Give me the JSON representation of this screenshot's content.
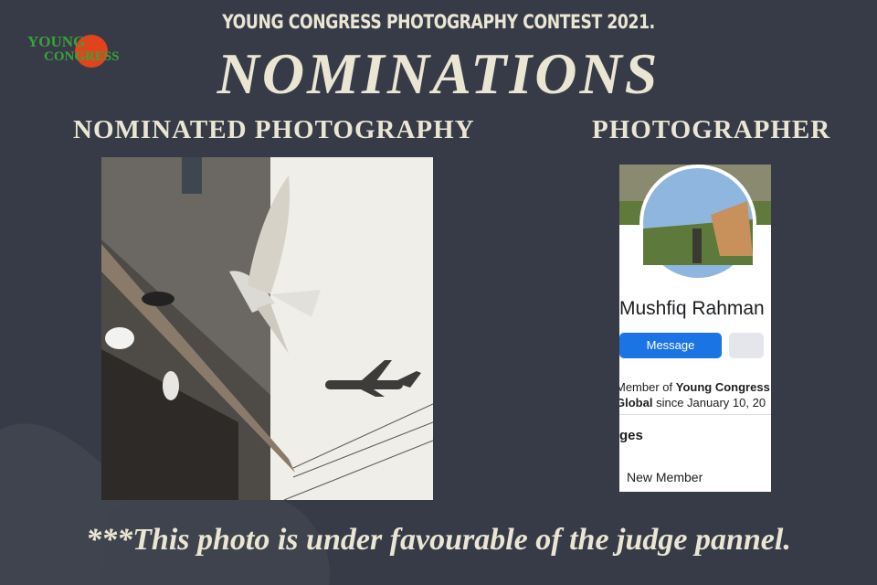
{
  "logo": {
    "line1": "YOUNG",
    "line2": "CONGRESS"
  },
  "header": {
    "subtitle": "YOUNG CONGRESS PHOTOGRAPHY CONTEST 2021.",
    "title": "NOMINATIONS"
  },
  "columns": {
    "left": "NOMINATED PHOTOGRAPHY",
    "right": "PHOTOGRAPHER"
  },
  "profile": {
    "name": "Mushfiq Rahman",
    "button": "Message",
    "member_prefix": "Member of",
    "group_name": "Young Congress",
    "group_suffix": "Global",
    "since": "since January 10, 20",
    "section": "ges",
    "badge": "New Member"
  },
  "footer": "***This photo is under favourable of the judge pannel."
}
